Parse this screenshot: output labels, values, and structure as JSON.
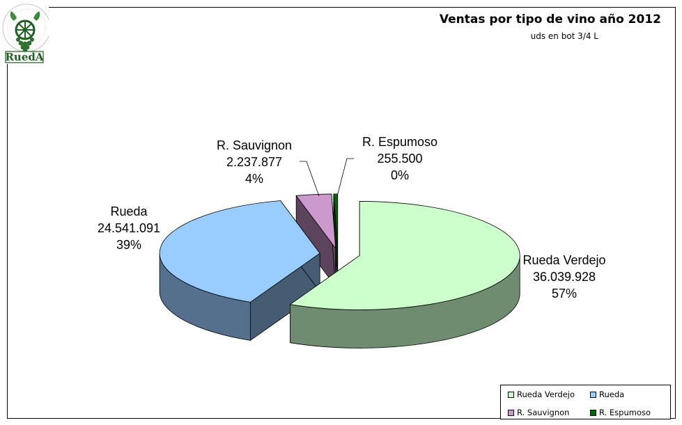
{
  "chart_data": {
    "type": "pie",
    "title": "Ventas por tipo de vino año 2012",
    "subtitle": "uds en bot 3/4 L",
    "categories": [
      "Rueda Verdejo",
      "Rueda",
      "R. Sauvignon",
      "R. Espumoso"
    ],
    "values": [
      36039928,
      24541091,
      2237877,
      255500
    ],
    "value_labels": [
      "36.039.928",
      "24.541.091",
      "2.237.877",
      "255.500"
    ],
    "percent_labels": [
      "57%",
      "39%",
      "4%",
      "0%"
    ],
    "colors": [
      "#ccffcc",
      "#99ccff",
      "#cc99cc",
      "#006600"
    ],
    "legend_position": "bottom-right",
    "three_d": true
  },
  "logo": {
    "text": "RuedA",
    "icon": "grape-wheel-logo-icon"
  }
}
